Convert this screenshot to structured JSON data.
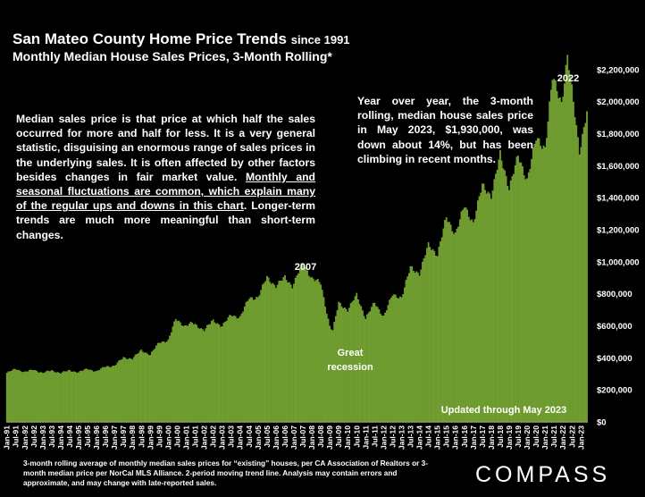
{
  "header": {
    "title": "San Mateo County Home Price Trends",
    "title_suffix": "since 1991",
    "subtitle": "Monthly Median House Sales Prices, 3-Month Rolling*"
  },
  "notes": {
    "description_part1": "Median sales price is that price at which half the sales occurred for more and half for less. It is a very general statistic, disguising an enormous range of sales prices in the underlying sales. It is often affected by other factors besides changes in fair market value. ",
    "description_underlined": "Monthly and seasonal fluctuations are common, which explain many of the regular ups and downs in this chart",
    "description_part2": ". Longer-term trends are much more meaningful than short-term changes.",
    "yoy": "Year over year, the 3-month rolling, median house sales price in May 2023, $1,930,000, was down about 14%, but has been climbing in recent months.",
    "footnote": "3-month rolling average of monthly median sales prices for “existing” houses, per CA Association of Realtors or 3-month median price per NorCal MLS Alliance. 2-period moving trend line. Analysis may contain errors and approximate, and may change with late-reported sales.",
    "brand": "COMPASS"
  },
  "colors": {
    "bar": "#6b9a2c",
    "bar_edge": "#8cbd43",
    "background": "#000000",
    "text": "#ffffff"
  },
  "chart_data": {
    "type": "bar",
    "title": "San Mateo County Home Price Trends",
    "ylabel": "",
    "xlabel": "",
    "ylim": [
      0,
      2300000
    ],
    "y_ticks": [
      {
        "value": 0,
        "label": "$0"
      },
      {
        "value": 200000,
        "label": "$200,000"
      },
      {
        "value": 400000,
        "label": "$400,000"
      },
      {
        "value": 600000,
        "label": "$600,000"
      },
      {
        "value": 800000,
        "label": "$800,000"
      },
      {
        "value": 1000000,
        "label": "$1,000,000"
      },
      {
        "value": 1200000,
        "label": "$1,200,000"
      },
      {
        "value": 1400000,
        "label": "$1,400,000"
      },
      {
        "value": 1600000,
        "label": "$1,600,000"
      },
      {
        "value": 1800000,
        "label": "$1,800,000"
      },
      {
        "value": 2000000,
        "label": "$2,000,000"
      },
      {
        "value": 2200000,
        "label": "$2,200,000"
      }
    ],
    "x_tick_labels": [
      "Jan-91",
      "Jul-91",
      "Jan-92",
      "Jul-92",
      "Jan-93",
      "Jul-93",
      "Jan-94",
      "Jul-94",
      "Jan-95",
      "Jul-95",
      "Jan-96",
      "Jul-96",
      "Jan-97",
      "Jul-97",
      "Jan-98",
      "Jul-98",
      "Jan-99",
      "Jul-99",
      "Jan-00",
      "Jul-00",
      "Jan-01",
      "Jul-01",
      "Jan-02",
      "Jul-02",
      "Jan-03",
      "Jul-03",
      "Jan-04",
      "Jul-04",
      "Jan-05",
      "Jul-05",
      "Jan-06",
      "Jul-06",
      "Jan-07",
      "Jul-07",
      "Jan-08",
      "Jul-08",
      "Jan-09",
      "Jul-09",
      "Jan-10",
      "Jul-10",
      "Jan-11",
      "Jul-11",
      "Jan-12",
      "Jul-12",
      "Jan-13",
      "Jul-13",
      "Jan-14",
      "Jul-14",
      "Jan-15",
      "Jul-15",
      "Jan-16",
      "Jul-16",
      "Jan-17",
      "Jul-17",
      "Jan-18",
      "Jul-18",
      "Jan-19",
      "Jul-19",
      "Jan-20",
      "Jul-20",
      "Jan-21",
      "Jul-21",
      "Jan-22",
      "Jul-22",
      "Jan-23"
    ],
    "start_month": "Jan-91",
    "end_month": "May-23",
    "anchors": [
      [
        "Jan-91",
        305000
      ],
      [
        "Jul-91",
        330000
      ],
      [
        "Jan-92",
        310000
      ],
      [
        "Jul-92",
        325000
      ],
      [
        "Jan-93",
        305000
      ],
      [
        "Jul-93",
        320000
      ],
      [
        "Jan-94",
        305000
      ],
      [
        "Jul-94",
        320000
      ],
      [
        "Jan-95",
        310000
      ],
      [
        "Jul-95",
        330000
      ],
      [
        "Jan-96",
        315000
      ],
      [
        "Jul-96",
        345000
      ],
      [
        "Jan-97",
        350000
      ],
      [
        "Jul-97",
        400000
      ],
      [
        "Jan-98",
        395000
      ],
      [
        "Jul-98",
        445000
      ],
      [
        "Jan-99",
        420000
      ],
      [
        "Jul-99",
        495000
      ],
      [
        "Jan-00",
        510000
      ],
      [
        "Jun-00",
        640000
      ],
      [
        "Dec-00",
        600000
      ],
      [
        "May-01",
        615000
      ],
      [
        "Jan-02",
        575000
      ],
      [
        "Jul-02",
        630000
      ],
      [
        "Jan-03",
        600000
      ],
      [
        "Jul-03",
        665000
      ],
      [
        "Jan-04",
        655000
      ],
      [
        "Jul-04",
        770000
      ],
      [
        "Jan-05",
        780000
      ],
      [
        "Jul-05",
        900000
      ],
      [
        "Jan-06",
        850000
      ],
      [
        "Jul-06",
        900000
      ],
      [
        "Dec-06",
        850000
      ],
      [
        "Jul-07",
        990000
      ],
      [
        "Jan-08",
        900000
      ],
      [
        "Jul-08",
        860000
      ],
      [
        "Jan-09",
        600000
      ],
      [
        "Mar-09",
        570000
      ],
      [
        "Jul-09",
        740000
      ],
      [
        "Jan-10",
        700000
      ],
      [
        "Jul-10",
        790000
      ],
      [
        "Jan-11",
        650000
      ],
      [
        "Jul-11",
        740000
      ],
      [
        "Jan-12",
        660000
      ],
      [
        "Jul-12",
        790000
      ],
      [
        "Jan-13",
        780000
      ],
      [
        "Jul-13",
        960000
      ],
      [
        "Jan-14",
        930000
      ],
      [
        "Jul-14",
        1100000
      ],
      [
        "Jan-15",
        1050000
      ],
      [
        "Jul-15",
        1270000
      ],
      [
        "Jan-16",
        1180000
      ],
      [
        "Jul-16",
        1340000
      ],
      [
        "Jan-17",
        1250000
      ],
      [
        "Jul-17",
        1470000
      ],
      [
        "Jan-18",
        1420000
      ],
      [
        "Jul-18",
        1660000
      ],
      [
        "Jan-19",
        1470000
      ],
      [
        "Jul-19",
        1650000
      ],
      [
        "Jan-20",
        1520000
      ],
      [
        "Jul-20",
        1760000
      ],
      [
        "Jan-21",
        1720000
      ],
      [
        "Jun-21",
        2140000
      ],
      [
        "Dec-21",
        2000000
      ],
      [
        "Apr-22",
        2280000
      ],
      [
        "Dec-22",
        1700000
      ],
      [
        "May-23",
        1930000
      ]
    ],
    "annotations": [
      {
        "text": "2007"
      },
      {
        "text": "Great"
      },
      {
        "text": "recession"
      },
      {
        "text": "2022"
      },
      {
        "text": "Updated through May 2023"
      }
    ]
  }
}
